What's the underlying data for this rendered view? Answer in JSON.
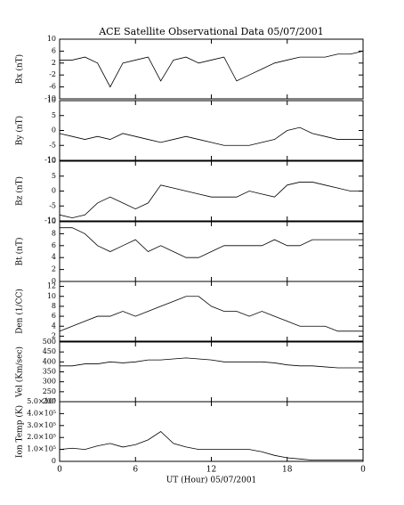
{
  "chart_data": [
    {
      "type": "line",
      "title": "ACE Satellite Observational Data  05/07/2001",
      "ylabel": "Bx (nT)",
      "x": [
        0,
        1,
        2,
        3,
        4,
        5,
        6,
        7,
        8,
        9,
        10,
        11,
        12,
        13,
        14,
        15,
        16,
        17,
        18,
        19,
        20,
        21,
        22,
        23,
        24
      ],
      "series": [
        {
          "color": "#000000",
          "values": [
            3,
            3,
            4,
            2,
            -6,
            2,
            3,
            4,
            -4,
            3,
            4,
            2,
            3,
            4,
            -4,
            -2,
            0,
            2,
            3,
            4,
            4,
            4,
            5,
            5,
            6
          ]
        }
      ],
      "xlim": [
        0,
        24
      ],
      "xticks": [
        0,
        6,
        12,
        18,
        24
      ],
      "ylim": [
        -10,
        10
      ],
      "yticks": [
        -10,
        -6,
        -2,
        2,
        6,
        10
      ]
    },
    {
      "type": "line",
      "ylabel": "By (nT)",
      "x": [
        0,
        1,
        2,
        3,
        4,
        5,
        6,
        7,
        8,
        9,
        10,
        11,
        12,
        13,
        14,
        15,
        16,
        17,
        18,
        19,
        20,
        21,
        22,
        23,
        24
      ],
      "series": [
        {
          "color": "#000000",
          "values": [
            -1,
            -2,
            -3,
            -2,
            -3,
            -1,
            -2,
            -3,
            -4,
            -3,
            -2,
            -3,
            -4,
            -5,
            -5,
            -5,
            -4,
            -3,
            0,
            1,
            -1,
            -2,
            -3,
            -3,
            -3
          ]
        }
      ],
      "xlim": [
        0,
        24
      ],
      "xticks": [
        0,
        6,
        12,
        18,
        24
      ],
      "ylim": [
        -10,
        10
      ],
      "yticks": [
        -10,
        -5,
        0,
        5,
        10
      ]
    },
    {
      "type": "line",
      "ylabel": "Bz (nT)",
      "x": [
        0,
        1,
        2,
        3,
        4,
        5,
        6,
        7,
        8,
        9,
        10,
        11,
        12,
        13,
        14,
        15,
        16,
        17,
        18,
        19,
        20,
        21,
        22,
        23,
        24
      ],
      "series": [
        {
          "color": "#000000",
          "values": [
            -8,
            -9,
            -8,
            -4,
            -2,
            -4,
            -6,
            -4,
            2,
            1,
            0,
            -1,
            -2,
            -2,
            -2,
            0,
            -1,
            -2,
            2,
            3,
            3,
            2,
            1,
            0,
            0
          ]
        }
      ],
      "xlim": [
        0,
        24
      ],
      "xticks": [
        0,
        6,
        12,
        18,
        24
      ],
      "ylim": [
        -10,
        10
      ],
      "yticks": [
        -10,
        -5,
        0,
        5,
        10
      ]
    },
    {
      "type": "line",
      "ylabel": "Bt (nT)",
      "x": [
        0,
        1,
        2,
        3,
        4,
        5,
        6,
        7,
        8,
        9,
        10,
        11,
        12,
        13,
        14,
        15,
        16,
        17,
        18,
        19,
        20,
        21,
        22,
        23,
        24
      ],
      "series": [
        {
          "color": "#000000",
          "values": [
            9,
            9,
            8,
            6,
            5,
            6,
            7,
            5,
            6,
            5,
            4,
            4,
            5,
            6,
            6,
            6,
            6,
            7,
            6,
            6,
            7,
            7,
            7,
            7,
            7
          ]
        }
      ],
      "xlim": [
        0,
        24
      ],
      "xticks": [
        0,
        6,
        12,
        18,
        24
      ],
      "ylim": [
        0,
        10
      ],
      "yticks": [
        0,
        2,
        4,
        6,
        8,
        10
      ]
    },
    {
      "type": "line",
      "ylabel": "Den (1/CC)",
      "x": [
        0,
        1,
        2,
        3,
        4,
        5,
        6,
        7,
        8,
        9,
        10,
        11,
        12,
        13,
        14,
        15,
        16,
        17,
        18,
        19,
        20,
        21,
        22,
        23,
        24
      ],
      "series": [
        {
          "color": "#000000",
          "values": [
            3,
            4,
            5,
            6,
            6,
            7,
            6,
            7,
            8,
            9,
            10,
            10,
            8,
            7,
            7,
            6,
            7,
            6,
            5,
            4,
            4,
            4,
            3,
            3,
            3
          ]
        }
      ],
      "xlim": [
        0,
        24
      ],
      "xticks": [
        0,
        6,
        12,
        18,
        24
      ],
      "ylim": [
        1,
        13
      ],
      "yticks": [
        2,
        4,
        6,
        8,
        10,
        12
      ]
    },
    {
      "type": "line",
      "ylabel": "Vel (Km/sec)",
      "x": [
        0,
        1,
        2,
        3,
        4,
        5,
        6,
        7,
        8,
        9,
        10,
        11,
        12,
        13,
        14,
        15,
        16,
        17,
        18,
        19,
        20,
        21,
        22,
        23,
        24
      ],
      "series": [
        {
          "color": "#000000",
          "values": [
            380,
            380,
            390,
            390,
            400,
            395,
            400,
            410,
            410,
            415,
            420,
            415,
            410,
            400,
            400,
            400,
            400,
            395,
            385,
            380,
            380,
            375,
            370,
            370,
            370
          ]
        }
      ],
      "xlim": [
        0,
        24
      ],
      "xticks": [
        0,
        6,
        12,
        18,
        24
      ],
      "ylim": [
        200,
        500
      ],
      "yticks": [
        200,
        250,
        300,
        350,
        400,
        450,
        500
      ]
    },
    {
      "type": "line",
      "ylabel": "Ion Temp (K)",
      "xlabel": "UT (Hour)  05/07/2001",
      "x": [
        0,
        1,
        2,
        3,
        4,
        5,
        6,
        7,
        8,
        9,
        10,
        11,
        12,
        13,
        14,
        15,
        16,
        17,
        18,
        19,
        20,
        21,
        22,
        23,
        24
      ],
      "series": [
        {
          "color": "#000000",
          "values": [
            100000,
            110000,
            100000,
            130000,
            150000,
            120000,
            140000,
            180000,
            250000,
            150000,
            120000,
            100000,
            100000,
            100000,
            100000,
            100000,
            80000,
            50000,
            30000,
            20000,
            10000,
            10000,
            10000,
            10000,
            10000
          ]
        }
      ],
      "xlim": [
        0,
        24
      ],
      "xticks": [
        0,
        6,
        12,
        18,
        {
          "value": 24,
          "label": "0"
        }
      ],
      "ylim": [
        0,
        500000
      ],
      "yticks": [
        0,
        {
          "value": 100000,
          "label": "1.0×10⁵"
        },
        {
          "value": 200000,
          "label": "2.0×10⁵"
        },
        {
          "value": 300000,
          "label": "3.0×10⁵"
        },
        {
          "value": 400000,
          "label": "4.0×10⁵"
        },
        {
          "value": 500000,
          "label": "5.0×10⁵"
        }
      ]
    }
  ]
}
